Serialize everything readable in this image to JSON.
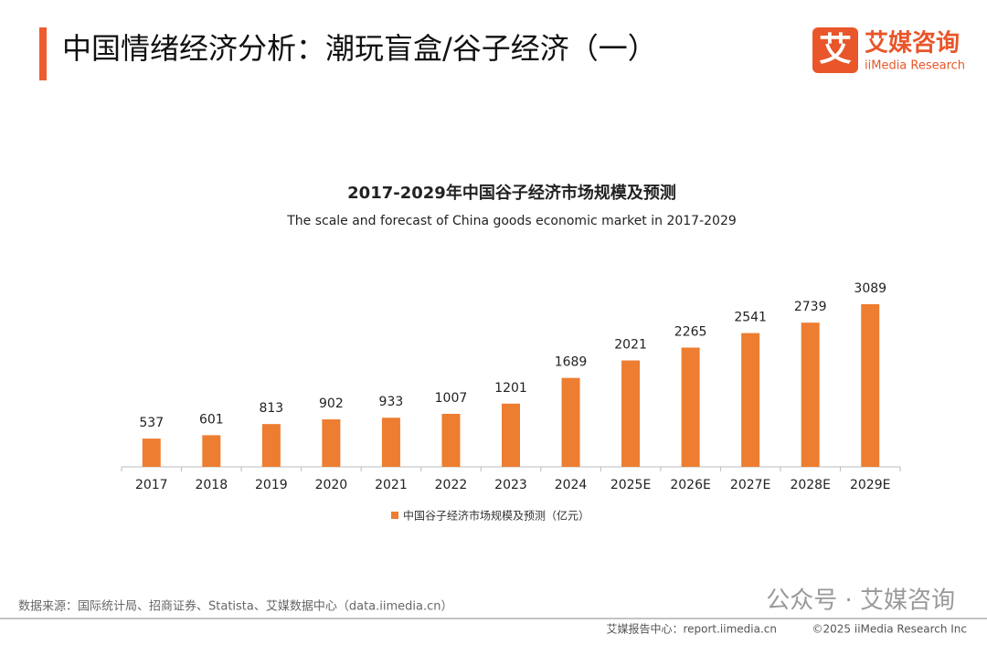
{
  "header": {
    "title": "中国情绪经济分析：潮玩盲盒/谷子经济（一）",
    "logo_icon": "艾",
    "logo_name": "艾媒咨询",
    "logo_sub": "iiMedia Research"
  },
  "chart_data": {
    "type": "bar",
    "title": "2017-2029年中国谷子经济市场规模及预测",
    "subtitle": "The scale and forecast of China goods economic market in 2017-2029",
    "categories": [
      "2017",
      "2018",
      "2019",
      "2020",
      "2021",
      "2022",
      "2023",
      "2024",
      "2025E",
      "2026E",
      "2027E",
      "2028E",
      "2029E"
    ],
    "series": [
      {
        "name": "中国谷子经济市场规模及预测（亿元）",
        "color": "#ed7d31",
        "values": [
          537,
          601,
          813,
          902,
          933,
          1007,
          1201,
          1689,
          2021,
          2265,
          2541,
          2739,
          3089
        ]
      }
    ],
    "legend": "bottom"
  },
  "source": "数据来源：国际统计局、招商证券、Statista、艾媒数据中心（data.iimedia.cn）",
  "watermark": "公众号 · 艾媒咨询",
  "footer": {
    "left": "艾媒报告中心：report.iimedia.cn",
    "right": "©2025  iiMedia Research  Inc"
  }
}
